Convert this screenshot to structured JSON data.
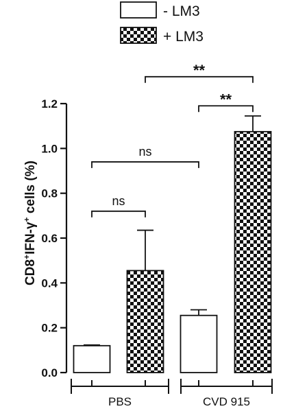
{
  "chart_data": {
    "type": "bar",
    "ylabel": {
      "parts": [
        {
          "text": "CD8",
          "sup": false
        },
        {
          "text": "+",
          "sup": true
        },
        {
          "text": "IFN-γ",
          "sup": false
        },
        {
          "text": "+",
          "sup": true
        },
        {
          "text": " cells (%)",
          "sup": false
        }
      ]
    },
    "ylim": [
      0,
      1.2
    ],
    "yticks": [
      "0.0",
      "0.2",
      "0.4",
      "0.6",
      "0.8",
      "1.0",
      "1.2"
    ],
    "groups": [
      "PBS",
      "CVD 915"
    ],
    "series": [
      {
        "name": "- LM3",
        "fill": "open",
        "values": [
          0.12,
          0.255
        ],
        "errors": [
          0.003,
          0.025
        ]
      },
      {
        "name": "+ LM3",
        "fill": "checker",
        "values": [
          0.455,
          1.075
        ],
        "errors": [
          0.18,
          0.07
        ]
      }
    ],
    "legend": {
      "placement": "top",
      "entries": [
        {
          "label": "-  LM3",
          "fill": "open"
        },
        {
          "label": "+ LM3",
          "fill": "checker"
        }
      ]
    },
    "comparisons": [
      {
        "label": "ns",
        "from_group": 0,
        "from_series": 0,
        "to_group": 0,
        "to_series": 1,
        "level": 0.72
      },
      {
        "label": "ns",
        "from_group": 0,
        "from_series": 0,
        "to_group": 1,
        "to_series": 0,
        "level": 0.94
      },
      {
        "label": "**",
        "from_group": 1,
        "from_series": 0,
        "to_group": 1,
        "to_series": 1,
        "level": 1.19
      },
      {
        "label": "**",
        "from_group": 0,
        "from_series": 1,
        "to_group": 1,
        "to_series": 1,
        "level": 1.32
      }
    ],
    "colors": {
      "axis": "#111111",
      "open_fill": "#ffffff",
      "checker_dark": "#111111",
      "checker_light": "#ffffff"
    }
  }
}
